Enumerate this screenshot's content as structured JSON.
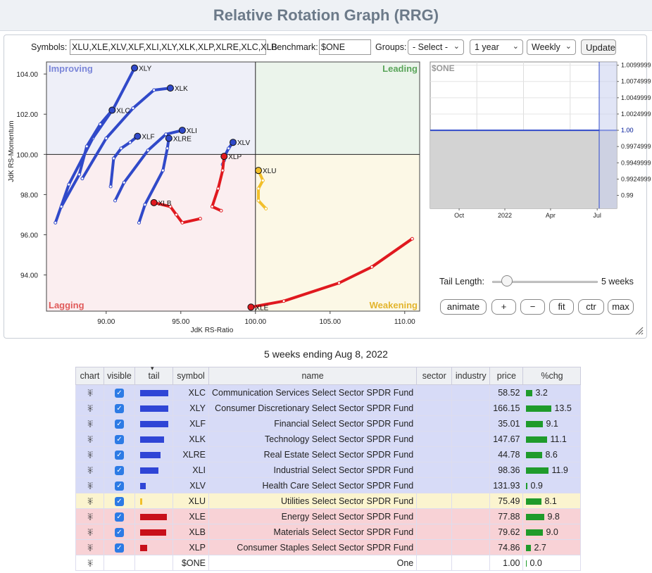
{
  "page": {
    "title": "Relative Rotation Graph (RRG)"
  },
  "controls": {
    "symbols_label": "Symbols:",
    "symbols_value": "XLU,XLE,XLV,XLF,XLI,XLY,XLK,XLP,XLRE,XLC,XLB",
    "benchmark_label": "Benchmark:",
    "benchmark_value": "$ONE",
    "groups_label": "Groups:",
    "groups_value": "- Select -",
    "period_value": "1 year",
    "frequency_value": "Weekly",
    "update_label": "Update"
  },
  "chart_data": [
    {
      "type": "scatter",
      "title": "",
      "xlabel": "JdK RS-Ratio",
      "ylabel": "JdK RS-Momentum",
      "xlim": [
        86,
        111
      ],
      "ylim": [
        92.2,
        104.6
      ],
      "xticks": [
        "90.00",
        "95.00",
        "100.00",
        "105.00",
        "110.00"
      ],
      "yticks": [
        "94.00",
        "96.00",
        "98.00",
        "100.00",
        "102.00",
        "104.00"
      ],
      "quadrants": {
        "top_left": "Improving",
        "top_right": "Leading",
        "bottom_left": "Lagging",
        "bottom_right": "Weakening"
      },
      "quadrant_colors": {
        "Improving": "#7b86d9",
        "Leading": "#5aa55a",
        "Lagging": "#e05a5a",
        "Weakening": "#e3b52d"
      },
      "tail_colors": {
        "blue": "#3049c9",
        "yellow": "#f2bf2a",
        "red": "#e0191f"
      },
      "series": [
        {
          "name": "XLY",
          "color": "blue",
          "points": [
            [
              86.6,
              96.6
            ],
            [
              87.5,
              98.5
            ],
            [
              89.1,
              100.8
            ],
            [
              90.5,
              102.3
            ],
            [
              91.9,
              104.3
            ]
          ]
        },
        {
          "name": "XLK",
          "color": "blue",
          "points": [
            [
              88.4,
              98.8
            ],
            [
              90.0,
              100.8
            ],
            [
              91.8,
              102.3
            ],
            [
              93.2,
              103.2
            ],
            [
              94.3,
              103.3
            ]
          ]
        },
        {
          "name": "XLC",
          "color": "blue",
          "points": [
            [
              87.0,
              97.4
            ],
            [
              88.2,
              99.0
            ],
            [
              88.7,
              100.4
            ],
            [
              89.6,
              101.5
            ],
            [
              90.4,
              102.2
            ]
          ]
        },
        {
          "name": "XLF",
          "color": "blue",
          "points": [
            [
              90.3,
              98.4
            ],
            [
              90.5,
              99.8
            ],
            [
              91.0,
              100.3
            ],
            [
              91.6,
              100.6
            ],
            [
              92.1,
              100.9
            ]
          ]
        },
        {
          "name": "XLI",
          "color": "blue",
          "points": [
            [
              90.6,
              97.7
            ],
            [
              91.2,
              98.6
            ],
            [
              92.8,
              100.2
            ],
            [
              94.0,
              101.0
            ],
            [
              95.1,
              101.2
            ]
          ]
        },
        {
          "name": "XLRE",
          "color": "blue",
          "points": [
            [
              92.2,
              96.6
            ],
            [
              92.6,
              97.5
            ],
            [
              93.8,
              99.2
            ],
            [
              94.1,
              100.3
            ],
            [
              94.2,
              100.8
            ]
          ]
        },
        {
          "name": "XLV",
          "color": "blue",
          "points": [
            [
              97.8,
              99.5
            ],
            [
              97.9,
              99.7
            ],
            [
              98.0,
              100.0
            ],
            [
              98.2,
              100.3
            ],
            [
              98.5,
              100.6
            ]
          ]
        },
        {
          "name": "XLU",
          "color": "yellow",
          "points": [
            [
              100.7,
              97.3
            ],
            [
              100.2,
              97.7
            ],
            [
              100.2,
              98.3
            ],
            [
              100.5,
              98.7
            ],
            [
              100.2,
              99.2
            ]
          ]
        },
        {
          "name": "XLE",
          "color": "red",
          "points": [
            [
              110.5,
              95.8
            ],
            [
              107.8,
              94.4
            ],
            [
              105.6,
              93.6
            ],
            [
              101.9,
              92.7
            ],
            [
              99.7,
              92.4
            ]
          ]
        },
        {
          "name": "XLB",
          "color": "red",
          "points": [
            [
              96.3,
              96.8
            ],
            [
              95.1,
              96.6
            ],
            [
              94.7,
              97.0
            ],
            [
              94.3,
              97.4
            ],
            [
              93.2,
              97.6
            ]
          ]
        },
        {
          "name": "XLP",
          "color": "red",
          "points": [
            [
              97.7,
              97.2
            ],
            [
              97.1,
              97.4
            ],
            [
              97.5,
              98.3
            ],
            [
              97.8,
              99.2
            ],
            [
              97.9,
              99.9
            ]
          ]
        }
      ]
    },
    {
      "type": "line",
      "series": [
        {
          "name": "$ONE",
          "values": [
            1.0,
            1.0,
            1.0,
            1.0,
            1.0,
            1.0,
            1.0,
            1.0,
            1.0,
            1.0,
            1.0,
            1.0,
            1.0
          ]
        }
      ],
      "legend": "$ONE",
      "xticks": [
        "Oct",
        "2022",
        "Apr",
        "Jul"
      ],
      "yticks": [
        "1.0099999",
        "1.0074999",
        "1.0049999",
        "1.0024999",
        "1.00",
        "0.9974999",
        "0.9949999",
        "0.9924999",
        "0.99"
      ],
      "ylim": [
        0.988,
        1.0105
      ],
      "current_value_label": "1.00"
    }
  ],
  "tail": {
    "label": "Tail Length:",
    "value": 5,
    "value_text": "5 weeks"
  },
  "buttons": {
    "animate": "animate",
    "zoom_in": "+",
    "zoom_out": "−",
    "fit": "fit",
    "center": "ctr",
    "max": "max"
  },
  "caption": "5 weeks ending Aug 8, 2022",
  "table": {
    "headers": {
      "chart": "chart",
      "visible": "visible",
      "tail": "tail",
      "symbol": "symbol",
      "name": "name",
      "sector": "sector",
      "industry": "industry",
      "price": "price",
      "pchg": "%chg"
    },
    "sort_indicator": "▾",
    "rows": [
      {
        "symbol": "XLC",
        "name": "Communication Services Select Sector SPDR Fund",
        "price": "58.52",
        "pchg": "3.2",
        "pchg_value": 3.2,
        "tail": 1.0,
        "tail_color": "#2f45d6",
        "row": "blue",
        "visible": true
      },
      {
        "symbol": "XLY",
        "name": "Consumer Discretionary Select Sector SPDR Fund",
        "price": "166.15",
        "pchg": "13.5",
        "pchg_value": 13.5,
        "tail": 1.0,
        "tail_color": "#2f45d6",
        "row": "blue",
        "visible": true
      },
      {
        "symbol": "XLF",
        "name": "Financial Select Sector SPDR Fund",
        "price": "35.01",
        "pchg": "9.1",
        "pchg_value": 9.1,
        "tail": 1.0,
        "tail_color": "#2f45d6",
        "row": "blue",
        "visible": true
      },
      {
        "symbol": "XLK",
        "name": "Technology Select Sector SPDR Fund",
        "price": "147.67",
        "pchg": "11.1",
        "pchg_value": 11.1,
        "tail": 0.85,
        "tail_color": "#2f45d6",
        "row": "blue",
        "visible": true
      },
      {
        "symbol": "XLRE",
        "name": "Real Estate Select Sector SPDR Fund",
        "price": "44.78",
        "pchg": "8.6",
        "pchg_value": 8.6,
        "tail": 0.72,
        "tail_color": "#2f45d6",
        "row": "blue",
        "visible": true
      },
      {
        "symbol": "XLI",
        "name": "Industrial Select Sector SPDR Fund",
        "price": "98.36",
        "pchg": "11.9",
        "pchg_value": 11.9,
        "tail": 0.65,
        "tail_color": "#2f45d6",
        "row": "blue",
        "visible": true
      },
      {
        "symbol": "XLV",
        "name": "Health Care Select Sector SPDR Fund",
        "price": "131.93",
        "pchg": "0.9",
        "pchg_value": 0.9,
        "tail": 0.2,
        "tail_color": "#2f45d6",
        "row": "blue",
        "visible": true
      },
      {
        "symbol": "XLU",
        "name": "Utilities Select Sector SPDR Fund",
        "price": "75.49",
        "pchg": "8.1",
        "pchg_value": 8.1,
        "tail": 0.08,
        "tail_color": "#f2bf2a",
        "row": "yel",
        "visible": true
      },
      {
        "symbol": "XLE",
        "name": "Energy Select Sector SPDR Fund",
        "price": "77.88",
        "pchg": "9.8",
        "pchg_value": 9.8,
        "tail": 0.95,
        "tail_color": "#c8101a",
        "row": "red",
        "visible": true
      },
      {
        "symbol": "XLB",
        "name": "Materials Select Sector SPDR Fund",
        "price": "79.62",
        "pchg": "9.0",
        "pchg_value": 9.0,
        "tail": 0.92,
        "tail_color": "#c8101a",
        "row": "red",
        "visible": true
      },
      {
        "symbol": "XLP",
        "name": "Consumer Staples Select Sector SPDR Fund",
        "price": "74.86",
        "pchg": "2.7",
        "pchg_value": 2.7,
        "tail": 0.25,
        "tail_color": "#c8101a",
        "row": "red",
        "visible": true
      },
      {
        "symbol": "$ONE",
        "name": "One",
        "price": "1.00",
        "pchg": "0.0",
        "pchg_value": 0.0,
        "tail": 0,
        "tail_color": "#ffffff",
        "row": "plain",
        "visible": false
      }
    ]
  }
}
